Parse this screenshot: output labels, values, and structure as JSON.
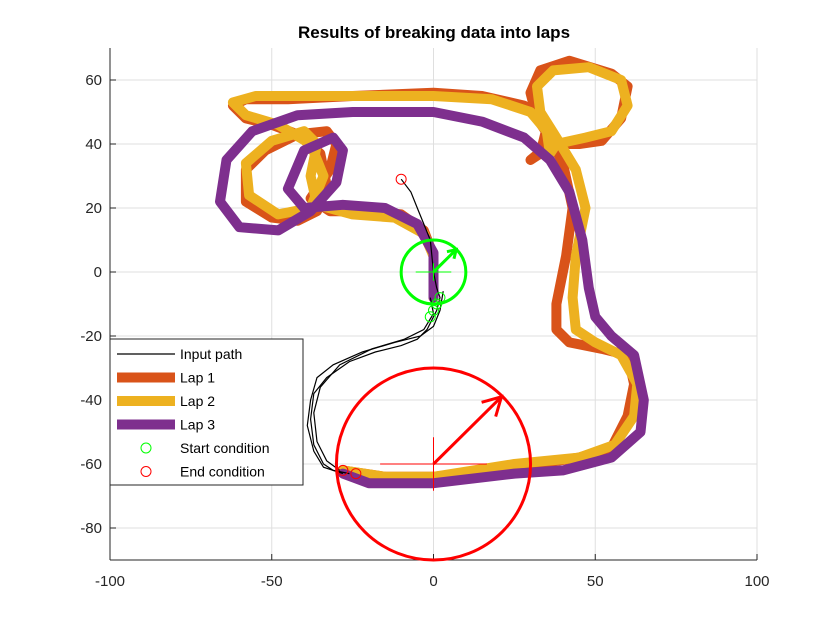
{
  "chart_data": {
    "type": "line",
    "title": "Results of breaking data into laps",
    "xlabel": "",
    "ylabel": "",
    "xlim": [
      -100,
      100
    ],
    "ylim": [
      -90,
      70
    ],
    "x_ticks": [
      -100,
      -50,
      0,
      50,
      100
    ],
    "y_ticks": [
      60,
      40,
      20,
      0,
      -20,
      -40,
      -60,
      -80
    ],
    "grid": true,
    "legend_position": "bottom-left",
    "series": [
      {
        "name": "Input path",
        "style": "thin-line",
        "color": "#000000",
        "paths": [
          [
            [
              -10,
              29
            ],
            [
              -7,
              25
            ],
            [
              -5,
              20
            ],
            [
              -3,
              15
            ],
            [
              -1,
              10
            ],
            [
              0,
              0
            ],
            [
              1,
              -5
            ],
            [
              2,
              -8
            ],
            [
              1,
              -12
            ],
            [
              -2,
              -18
            ],
            [
              -5,
              -21
            ],
            [
              -10,
              -23
            ],
            [
              -18,
              -25
            ],
            [
              -26,
              -28
            ],
            [
              -33,
              -33
            ],
            [
              -37,
              -38
            ],
            [
              -38,
              -46
            ],
            [
              -37,
              -54
            ],
            [
              -34,
              -60
            ],
            [
              -31,
              -62
            ],
            [
              -26,
              -63
            ]
          ],
          [
            [
              3,
              -6
            ],
            [
              2,
              -12
            ],
            [
              0,
              -17
            ],
            [
              -4,
              -20
            ],
            [
              -12,
              -22
            ],
            [
              -22,
              -25
            ],
            [
              -31,
              -29
            ],
            [
              -36,
              -33
            ],
            [
              -38,
              -40
            ],
            [
              -39,
              -48
            ],
            [
              -37,
              -56
            ],
            [
              -34,
              -61
            ],
            [
              -28,
              -63
            ]
          ],
          [
            [
              -1,
              -8
            ],
            [
              0,
              -13
            ],
            [
              -3,
              -18
            ],
            [
              -9,
              -21
            ],
            [
              -19,
              -24
            ],
            [
              -29,
              -29
            ],
            [
              -35,
              -36
            ],
            [
              -37,
              -44
            ],
            [
              -36,
              -53
            ],
            [
              -33,
              -59
            ],
            [
              -29,
              -62
            ]
          ]
        ]
      },
      {
        "name": "Lap 1",
        "style": "thick-line",
        "color": "#d95319",
        "points": [
          [
            0,
            -8
          ],
          [
            0,
            5
          ],
          [
            -3,
            13
          ],
          [
            -10,
            18
          ],
          [
            -20,
            19
          ],
          [
            -32,
            19
          ],
          [
            -38,
            23
          ],
          [
            -32,
            32
          ],
          [
            -30,
            40
          ],
          [
            -33,
            44
          ],
          [
            -42,
            43
          ],
          [
            -52,
            38
          ],
          [
            -58,
            32
          ],
          [
            -58,
            22
          ],
          [
            -50,
            17
          ],
          [
            -42,
            16
          ],
          [
            -36,
            19
          ],
          [
            -33,
            27
          ],
          [
            -35,
            37
          ],
          [
            -42,
            43
          ],
          [
            -50,
            46
          ],
          [
            -58,
            48
          ],
          [
            -62,
            52
          ],
          [
            -58,
            54
          ],
          [
            -45,
            54
          ],
          [
            -25,
            55
          ],
          [
            0,
            56
          ],
          [
            15,
            55
          ],
          [
            28,
            52
          ],
          [
            35,
            45
          ],
          [
            33,
            37
          ],
          [
            30,
            35
          ],
          [
            36,
            40
          ],
          [
            45,
            40
          ],
          [
            52,
            41
          ],
          [
            58,
            48
          ],
          [
            60,
            58
          ],
          [
            55,
            62
          ],
          [
            42,
            66
          ],
          [
            33,
            63
          ],
          [
            30,
            56
          ],
          [
            32,
            48
          ],
          [
            36,
            42
          ],
          [
            40,
            34
          ],
          [
            43,
            20
          ],
          [
            41,
            5
          ],
          [
            38,
            -10
          ],
          [
            38,
            -18
          ],
          [
            42,
            -22
          ],
          [
            52,
            -24
          ],
          [
            60,
            -26
          ],
          [
            62,
            -35
          ],
          [
            60,
            -45
          ],
          [
            55,
            -55
          ],
          [
            45,
            -58
          ],
          [
            25,
            -61
          ],
          [
            0,
            -64
          ],
          [
            -15,
            -64
          ],
          [
            -28,
            -62
          ]
        ]
      },
      {
        "name": "Lap 2",
        "style": "thick-line",
        "color": "#edb120",
        "points": [
          [
            0,
            -8
          ],
          [
            0,
            5
          ],
          [
            -3,
            12
          ],
          [
            -12,
            17
          ],
          [
            -25,
            18
          ],
          [
            -36,
            21
          ],
          [
            -38,
            30
          ],
          [
            -36,
            40
          ],
          [
            -40,
            44
          ],
          [
            -50,
            41
          ],
          [
            -58,
            34
          ],
          [
            -57,
            24
          ],
          [
            -48,
            18
          ],
          [
            -38,
            20
          ],
          [
            -34,
            30
          ],
          [
            -38,
            40
          ],
          [
            -48,
            46
          ],
          [
            -58,
            49
          ],
          [
            -62,
            53
          ],
          [
            -55,
            55
          ],
          [
            -40,
            55
          ],
          [
            -20,
            55
          ],
          [
            0,
            55
          ],
          [
            18,
            54
          ],
          [
            30,
            50
          ],
          [
            35,
            44
          ],
          [
            36,
            37
          ],
          [
            38,
            40
          ],
          [
            47,
            42
          ],
          [
            55,
            44
          ],
          [
            60,
            52
          ],
          [
            58,
            60
          ],
          [
            48,
            64
          ],
          [
            37,
            63
          ],
          [
            32,
            58
          ],
          [
            33,
            50
          ],
          [
            38,
            42
          ],
          [
            44,
            32
          ],
          [
            47,
            20
          ],
          [
            44,
            5
          ],
          [
            43,
            -8
          ],
          [
            44,
            -18
          ],
          [
            50,
            -22
          ],
          [
            58,
            -26
          ],
          [
            63,
            -35
          ],
          [
            62,
            -45
          ],
          [
            56,
            -54
          ],
          [
            45,
            -58
          ],
          [
            25,
            -60
          ],
          [
            0,
            -64
          ],
          [
            -15,
            -64
          ],
          [
            -28,
            -62
          ]
        ]
      },
      {
        "name": "Lap 3",
        "style": "thick-line",
        "color": "#7e2f8e",
        "points": [
          [
            0,
            -8
          ],
          [
            0,
            6
          ],
          [
            -5,
            15
          ],
          [
            -15,
            20
          ],
          [
            -28,
            21
          ],
          [
            -40,
            20
          ],
          [
            -45,
            26
          ],
          [
            -40,
            38
          ],
          [
            -31,
            42
          ],
          [
            -28,
            38
          ],
          [
            -30,
            28
          ],
          [
            -38,
            19
          ],
          [
            -48,
            13
          ],
          [
            -60,
            14
          ],
          [
            -66,
            22
          ],
          [
            -64,
            35
          ],
          [
            -56,
            44
          ],
          [
            -42,
            49
          ],
          [
            -25,
            50
          ],
          [
            0,
            50
          ],
          [
            15,
            47
          ],
          [
            28,
            42
          ],
          [
            36,
            35
          ],
          [
            42,
            25
          ],
          [
            46,
            10
          ],
          [
            48,
            -5
          ],
          [
            50,
            -14
          ],
          [
            55,
            -20
          ],
          [
            62,
            -26
          ],
          [
            65,
            -40
          ],
          [
            64,
            -50
          ],
          [
            55,
            -58
          ],
          [
            40,
            -62
          ],
          [
            25,
            -63
          ],
          [
            0,
            -66
          ],
          [
            -20,
            -66
          ],
          [
            -28,
            -63
          ]
        ]
      },
      {
        "name": "Start condition",
        "style": "circle-markers",
        "color": "#00ff00",
        "points": [
          [
            2,
            -8
          ],
          [
            1,
            -10
          ],
          [
            0,
            -12
          ],
          [
            -1,
            -14
          ]
        ]
      },
      {
        "name": "End condition",
        "style": "circle-markers",
        "color": "#ff0000",
        "points": [
          [
            -10,
            29
          ],
          [
            -28,
            -62
          ],
          [
            -24,
            -63
          ]
        ]
      }
    ],
    "annotations": [
      {
        "kind": "circle-with-arrow",
        "color": "#00ff00",
        "center": [
          0,
          0
        ],
        "radius": 10,
        "arrow_to": [
          7,
          7
        ]
      },
      {
        "kind": "circle-with-arrow",
        "color": "#ff0000",
        "center": [
          0,
          -60
        ],
        "radius": 30,
        "arrow_to": [
          21,
          -39
        ]
      }
    ]
  }
}
